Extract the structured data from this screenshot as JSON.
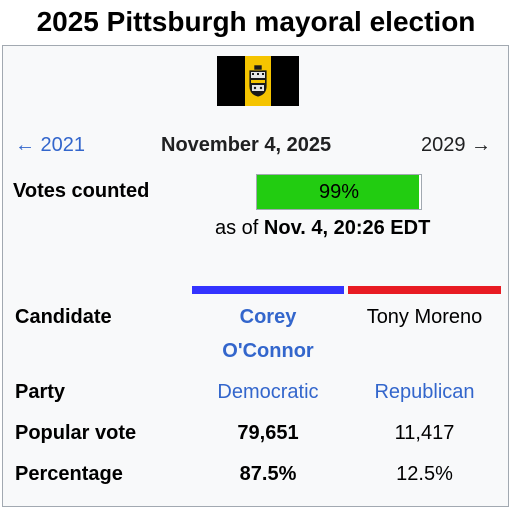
{
  "title": "2025 Pittsburgh mayoral election",
  "nav": {
    "prev": "← 2021",
    "date": "November 4, 2025",
    "next": "2029 →"
  },
  "votes_counted": {
    "label": "Votes counted",
    "percent_text": "99%",
    "fraction": 0.99,
    "as_of_prefix": "as of ",
    "as_of_value": "Nov. 4, 20:26 EDT"
  },
  "rows": {
    "candidate": "Candidate",
    "party": "Party",
    "popular_vote": "Popular vote",
    "percentage": "Percentage"
  },
  "candidates": [
    {
      "name_line1": "Corey",
      "name_line2": "O'Connor",
      "party": "Democratic",
      "votes": "79,651",
      "percentage": "87.5%",
      "color": "#3333ff"
    },
    {
      "name": "Tony Moreno",
      "party": "Republican",
      "votes": "11,417",
      "percentage": "12.5%",
      "color": "#e81b23"
    }
  ],
  "flag": {
    "icon": "pittsburgh-flag-icon",
    "colors": [
      "#000000",
      "#f5c400"
    ]
  }
}
